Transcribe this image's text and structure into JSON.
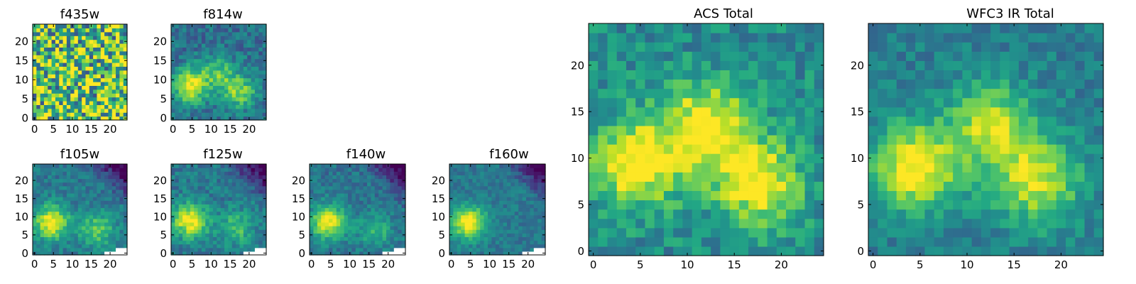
{
  "chart_data": [
    {
      "type": "heatmap",
      "title": "f435w",
      "x": [
        0,
        24
      ],
      "y": [
        0,
        24
      ],
      "xticks": [
        0,
        5,
        10,
        15,
        20
      ],
      "yticks": [
        0,
        5,
        10,
        15,
        20
      ],
      "xlim": [
        -0.5,
        24.5
      ],
      "ylim": [
        -0.5,
        24.5
      ],
      "colormap": "viridis",
      "appearance": "noise-dominated, mostly green-yellow with scattered dark pixels"
    },
    {
      "type": "heatmap",
      "title": "f814w",
      "x": [
        0,
        24
      ],
      "y": [
        0,
        24
      ],
      "xticks": [
        0,
        5,
        10,
        15,
        20
      ],
      "yticks": [
        0,
        5,
        10,
        15,
        20
      ],
      "xlim": [
        -0.5,
        24.5
      ],
      "ylim": [
        -0.5,
        24.5
      ],
      "colormap": "viridis",
      "sources": [
        {
          "x": 4.5,
          "y": 8.5,
          "peak": 1.0
        },
        {
          "x": 17.5,
          "y": 7,
          "peak": 0.7
        },
        {
          "x": 12,
          "y": 12,
          "peak": 0.55
        }
      ]
    },
    {
      "type": "heatmap",
      "title": "f105w",
      "x": [
        0,
        24
      ],
      "y": [
        0,
        24
      ],
      "xticks": [
        0,
        5,
        10,
        15,
        20
      ],
      "yticks": [
        0,
        5,
        10,
        15,
        20
      ],
      "xlim": [
        -0.5,
        24.5
      ],
      "ylim": [
        -0.5,
        24.5
      ],
      "colormap": "viridis",
      "sources": [
        {
          "x": 4.5,
          "y": 8.5,
          "peak": 1.0
        },
        {
          "x": 16.5,
          "y": 6.5,
          "peak": 0.6
        }
      ],
      "masked_region": "white pixels at bottom-right edge"
    },
    {
      "type": "heatmap",
      "title": "f125w",
      "x": [
        0,
        24
      ],
      "y": [
        0,
        24
      ],
      "xticks": [
        0,
        5,
        10,
        15,
        20
      ],
      "yticks": [
        0,
        5,
        10,
        15,
        20
      ],
      "xlim": [
        -0.5,
        24.5
      ],
      "ylim": [
        -0.5,
        24.5
      ],
      "colormap": "viridis",
      "sources": [
        {
          "x": 4.5,
          "y": 9,
          "peak": 1.0
        },
        {
          "x": 16.5,
          "y": 7,
          "peak": 0.5
        }
      ],
      "masked_region": "white pixels at bottom-right edge"
    },
    {
      "type": "heatmap",
      "title": "f140w",
      "x": [
        0,
        24
      ],
      "y": [
        0,
        24
      ],
      "xticks": [
        0,
        5,
        10,
        15,
        20
      ],
      "yticks": [
        0,
        5,
        10,
        15,
        20
      ],
      "xlim": [
        -0.5,
        24.5
      ],
      "ylim": [
        -0.5,
        24.5
      ],
      "colormap": "viridis",
      "sources": [
        {
          "x": 4.5,
          "y": 8.5,
          "peak": 1.0
        },
        {
          "x": 16.5,
          "y": 6.5,
          "peak": 0.45
        }
      ],
      "masked_region": "white pixels at bottom-right edge"
    },
    {
      "type": "heatmap",
      "title": "f160w",
      "x": [
        0,
        24
      ],
      "y": [
        0,
        24
      ],
      "xticks": [
        0,
        5,
        10,
        15,
        20
      ],
      "yticks": [
        0,
        5,
        10,
        15,
        20
      ],
      "xlim": [
        -0.5,
        24.5
      ],
      "ylim": [
        -0.5,
        24.5
      ],
      "colormap": "viridis",
      "sources": [
        {
          "x": 4.5,
          "y": 8.5,
          "peak": 1.0
        }
      ],
      "masked_region": "white pixels at bottom-right edge"
    },
    {
      "type": "heatmap",
      "title": "ACS Total",
      "x": [
        0,
        24
      ],
      "y": [
        0,
        24
      ],
      "xticks": [
        0,
        5,
        10,
        15,
        20
      ],
      "yticks": [
        0,
        5,
        10,
        15,
        20
      ],
      "xlim": [
        -0.5,
        24.5
      ],
      "ylim": [
        -0.5,
        24.5
      ],
      "colormap": "viridis",
      "sources": [
        {
          "x": 4.5,
          "y": 9.5,
          "peak": 1.0
        },
        {
          "x": 12,
          "y": 13.5,
          "peak": 0.9
        },
        {
          "x": 17.5,
          "y": 7.5,
          "peak": 0.9
        }
      ]
    },
    {
      "type": "heatmap",
      "title": "WFC3 IR Total",
      "x": [
        0,
        24
      ],
      "y": [
        0,
        24
      ],
      "xticks": [
        0,
        5,
        10,
        15,
        20
      ],
      "yticks": [
        0,
        5,
        10,
        15,
        20
      ],
      "xlim": [
        -0.5,
        24.5
      ],
      "ylim": [
        -0.5,
        24.5
      ],
      "colormap": "viridis",
      "sources": [
        {
          "x": 4.5,
          "y": 9,
          "peak": 1.0
        },
        {
          "x": 12.5,
          "y": 13.5,
          "peak": 0.75
        },
        {
          "x": 17.5,
          "y": 7.5,
          "peak": 0.8
        }
      ]
    }
  ]
}
